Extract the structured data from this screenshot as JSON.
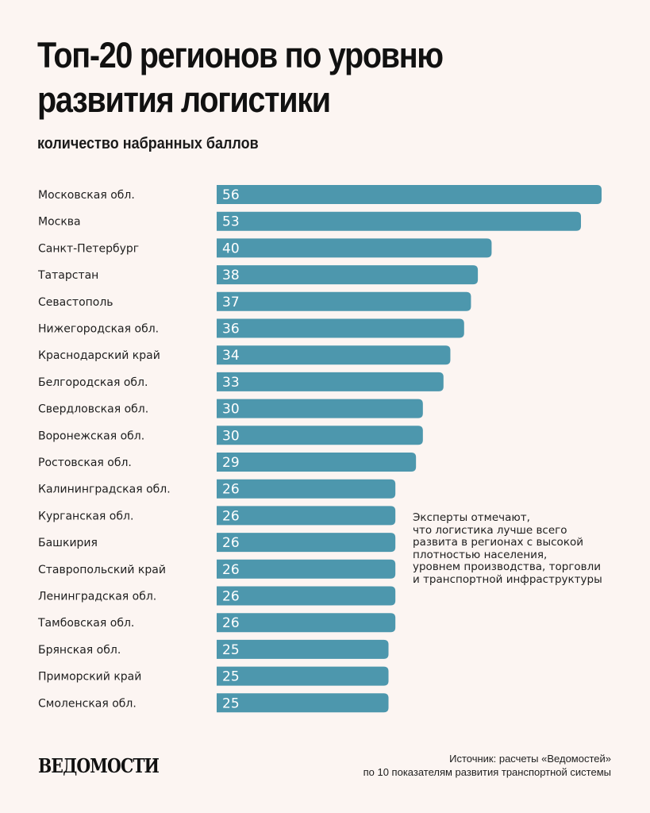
{
  "header": {
    "title_line1": "Топ-20 регионов по уровню",
    "title_line2": "развития логистики",
    "subtitle": "количество набранных баллов"
  },
  "colors": {
    "bar": "#4d97ad",
    "background": "#fcf5f2",
    "text": "#1e1e1e"
  },
  "chart_data": {
    "type": "bar",
    "orientation": "horizontal",
    "title": "Топ-20 регионов по уровню развития логистики",
    "subtitle": "количество набранных баллов",
    "xlabel": "",
    "ylabel": "",
    "xlim": [
      0,
      56
    ],
    "categories": [
      "Московская обл.",
      "Москва",
      "Санкт-Петербург",
      "Татарстан",
      "Севастополь",
      "Нижегородская обл.",
      "Краснодарский край",
      "Белгородская обл.",
      "Свердловская обл.",
      "Воронежская обл.",
      "Ростовская обл.",
      "Калининградская обл.",
      "Курганская обл.",
      "Башкирия",
      "Ставропольский край",
      "Ленинградская обл.",
      "Тамбовская обл.",
      "Брянская обл.",
      "Приморский край",
      "Смоленская обл."
    ],
    "values": [
      56,
      53,
      40,
      38,
      37,
      36,
      34,
      33,
      30,
      30,
      29,
      26,
      26,
      26,
      26,
      26,
      26,
      25,
      25,
      25
    ]
  },
  "annotation": "Эксперты отмечают,\nчто логистика лучше всего\nразвита в регионах с высокой\nплотностью населения,\nуровнем производства, торговли\nи транспортной инфраструктуры",
  "footer": {
    "logo": "ВЕДОМОСТИ",
    "source_line1": "Источник: расчеты «Ведомостей»",
    "source_line2": "по 10 показателям развития транспортной системы"
  }
}
